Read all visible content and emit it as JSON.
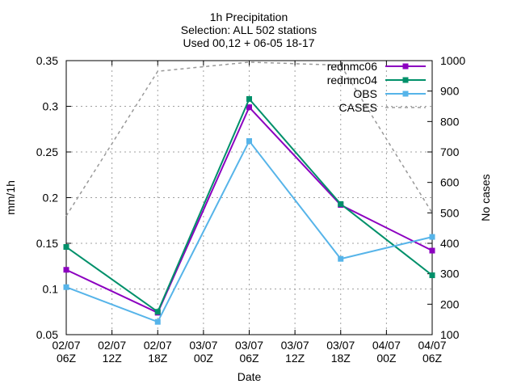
{
  "chart_data": {
    "type": "line",
    "title_lines": [
      "1h Precipitation",
      "Selection: ALL    502 stations",
      "Used 00,12 + 06-05 18-17"
    ],
    "xlabel": "Date",
    "ylabel": "mm/1h",
    "y2label": "No cases",
    "categories": [
      [
        "02/07",
        "06Z"
      ],
      [
        "02/07",
        "12Z"
      ],
      [
        "02/07",
        "18Z"
      ],
      [
        "03/07",
        "00Z"
      ],
      [
        "03/07",
        "06Z"
      ],
      [
        "03/07",
        "12Z"
      ],
      [
        "03/07",
        "18Z"
      ],
      [
        "04/07",
        "00Z"
      ],
      [
        "04/07",
        "06Z"
      ]
    ],
    "ylim": [
      0.05,
      0.35
    ],
    "yticks": [
      "0.05",
      "0.1",
      "0.15",
      "0.2",
      "0.25",
      "0.3",
      "0.35"
    ],
    "y2lim": [
      100,
      1000
    ],
    "y2ticks": [
      "100",
      "200",
      "300",
      "400",
      "500",
      "600",
      "700",
      "800",
      "900",
      "1000"
    ],
    "grid": true,
    "legend_position": "top-right",
    "series": [
      {
        "name": "rednmc06",
        "axis": "y",
        "color": "#8c00c0",
        "style": "solid",
        "marker": true,
        "points": [
          [
            0,
            0.121
          ],
          [
            2,
            0.074
          ],
          [
            4,
            0.299
          ],
          [
            6,
            0.192
          ],
          [
            8,
            0.142
          ]
        ]
      },
      {
        "name": "rednmc04",
        "axis": "y",
        "color": "#00906a",
        "style": "solid",
        "marker": true,
        "points": [
          [
            0,
            0.146
          ],
          [
            2,
            0.075
          ],
          [
            4,
            0.308
          ],
          [
            6,
            0.193
          ],
          [
            8,
            0.115
          ]
        ]
      },
      {
        "name": "OBS",
        "axis": "y",
        "color": "#56b4e9",
        "style": "solid",
        "marker": true,
        "points": [
          [
            0,
            0.102
          ],
          [
            2,
            0.064
          ],
          [
            4,
            0.262
          ],
          [
            6,
            0.133
          ],
          [
            8,
            0.157
          ]
        ]
      },
      {
        "name": "CASES",
        "axis": "y2",
        "color": "#999999",
        "style": "dashed",
        "marker": false,
        "points": [
          [
            0,
            490
          ],
          [
            2,
            965
          ],
          [
            4,
            995
          ],
          [
            6,
            985
          ],
          [
            8,
            500
          ]
        ]
      }
    ]
  }
}
